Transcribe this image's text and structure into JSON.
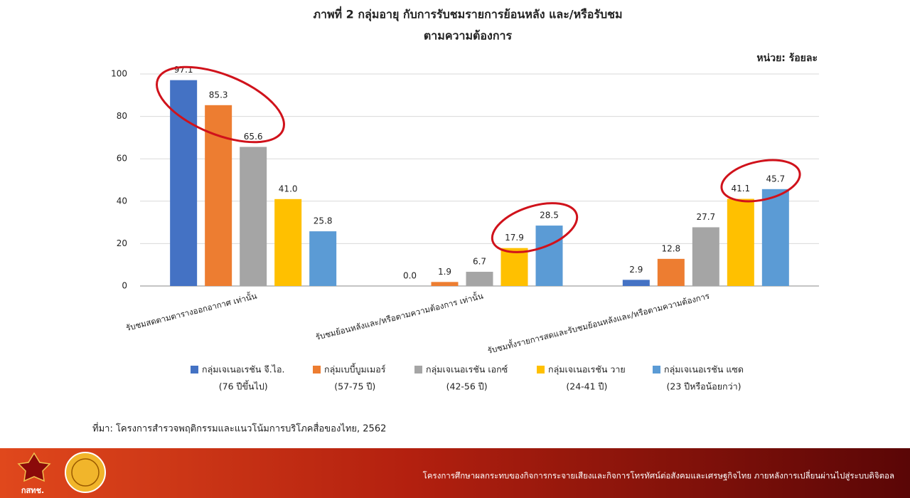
{
  "chart_data": {
    "type": "bar",
    "title_lines": [
      "ภาพที่ 2 กลุ่มอายุ กับการรับชมรายการย้อนหลัง และ/หรือรับชม",
      "ตามความต้องการ"
    ],
    "unit": "หน่วย: ร้อยละ",
    "categories": [
      "รับชมสดตามตารางออกอากาศ เท่านั้น",
      "รับชมย้อนหลังและ/หรือตามความต้องการ เท่านั้น",
      "รับชมทั้งรายการสดและรับชมย้อนหลังและ/หรือตามความต้องการ"
    ],
    "series": [
      {
        "name": "กลุ่มเจเนอเรชัน จี.ไอ.",
        "age": "(76 ปีขึ้นไป)",
        "color": "#4472c4",
        "values": [
          97.1,
          0.0,
          2.9
        ],
        "value_labels": [
          "97.1",
          "0.0",
          "2.9"
        ]
      },
      {
        "name": "กลุ่มเบบี้บูมเมอร์",
        "age": "(57-75 ปี)",
        "color": "#ed7d31",
        "values": [
          85.3,
          1.9,
          12.8
        ],
        "value_labels": [
          "85.3",
          "1.9",
          "12.8"
        ]
      },
      {
        "name": "กลุ่มเจเนอเรชัน เอกซ์",
        "age": "(42-56 ปี)",
        "color": "#a5a5a5",
        "values": [
          65.6,
          6.7,
          27.7
        ],
        "value_labels": [
          "65.6",
          "6.7",
          "27.7"
        ]
      },
      {
        "name": "กลุ่มเจเนอเรชัน วาย",
        "age": "(24-41 ปี)",
        "color": "#ffc000",
        "values": [
          41.0,
          17.9,
          41.1
        ],
        "value_labels": [
          "41.0",
          "17.9",
          "41.1"
        ]
      },
      {
        "name": "กลุ่มเจเนอเรชัน แซด",
        "age": "(23 ปีหรือน้อยกว่า)",
        "color": "#5b9bd5",
        "values": [
          25.8,
          28.5,
          45.7
        ],
        "value_labels": [
          "25.8",
          "28.5",
          "45.7"
        ]
      }
    ],
    "ylim": [
      0,
      100
    ],
    "yticks": [
      0,
      20,
      40,
      60,
      80,
      100
    ],
    "grid": true,
    "source": "ที่มา: โครงการสำรวจพฤติกรรมและแนวโน้มการบริโภคสื่อของไทย, 2562"
  },
  "footer": {
    "logo_text": "กสทช.",
    "text": "โครงการศึกษาผลกระทบของกิจการกระจายเสียงและกิจการโทรทัศน์ต่อสังคมและเศรษฐกิจไทย ภายหลังการเปลี่ยนผ่านไปสู่ระบบดิจิตอล"
  }
}
